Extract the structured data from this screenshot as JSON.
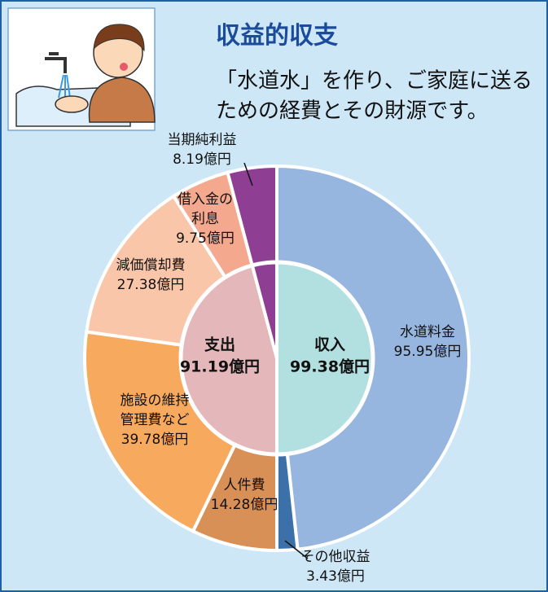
{
  "chart_data": {
    "type": "donut",
    "title": "収益的収支",
    "subtitle": [
      "「水道水」を作り、ご家庭に送る",
      "ための経費とその財源です。"
    ],
    "segments": [
      {
        "name": [
          "水道料金"
        ],
        "value": 95.95,
        "value_label": "95.95億円",
        "color": "#97b6df"
      },
      {
        "name": [
          "その他収益"
        ],
        "value": 3.43,
        "value_label": "3.43億円",
        "color": "#3b70a8"
      },
      {
        "name": [
          "人件費"
        ],
        "value": 14.28,
        "value_label": "14.28億円",
        "color": "#d99056"
      },
      {
        "name": [
          "施設の維持",
          "管理費など"
        ],
        "value": 39.78,
        "value_label": "39.78億円",
        "color": "#f7a95e"
      },
      {
        "name": [
          "減価償却費"
        ],
        "value": 27.38,
        "value_label": "27.38億円",
        "color": "#f9c6aa"
      },
      {
        "name": [
          "借入金の",
          "利息"
        ],
        "value": 9.75,
        "value_label": "9.75億円",
        "color": "#f4a88e"
      },
      {
        "name": [
          "当期純利益"
        ],
        "value": 8.19,
        "value_label": "8.19億円",
        "color": "#8e3f94"
      }
    ],
    "inner": [
      {
        "name": [
          "収入"
        ],
        "value": 99.38,
        "value_label": "99.38億円",
        "color": "#b2e0e1"
      },
      {
        "name": [
          "支出"
        ],
        "value": 91.19,
        "value_label": "91.19億円",
        "color": "#e4b8ba"
      }
    ]
  }
}
